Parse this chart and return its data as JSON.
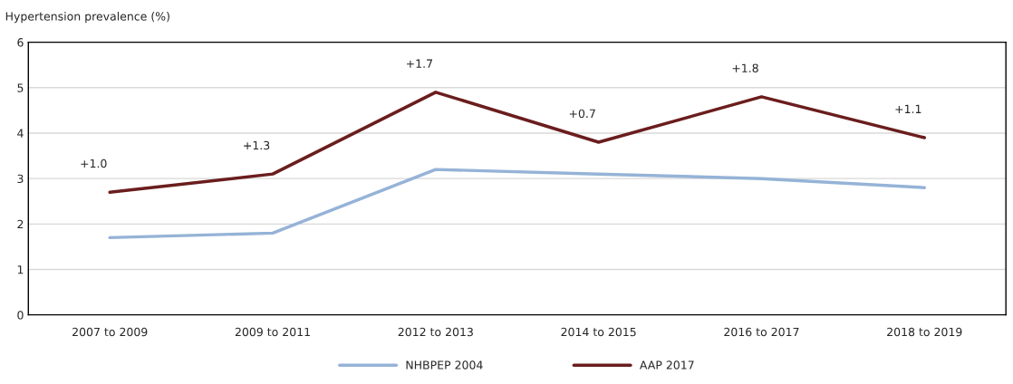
{
  "chart_data": {
    "type": "line",
    "ylabel": "Hypertension prevalence (%)",
    "categories": [
      "2007 to 2009",
      "2009 to 2011",
      "2012 to 2013",
      "2014 to 2015",
      "2016 to 2017",
      "2018 to 2019"
    ],
    "series": [
      {
        "name": "NHBPEP 2004",
        "color": "#95b3d7",
        "values": [
          1.7,
          1.8,
          3.2,
          3.1,
          3.0,
          2.8
        ]
      },
      {
        "name": "AAP 2017",
        "color": "#6b1d1d",
        "values": [
          2.7,
          3.1,
          4.9,
          3.8,
          4.8,
          3.9
        ]
      }
    ],
    "ylim": [
      0,
      6
    ],
    "yticks": [
      0,
      1,
      2,
      3,
      4,
      5,
      6
    ],
    "grid": "y",
    "legend": "bottom",
    "marker": "none",
    "line_style": "solid",
    "annotations": [
      "+1.0",
      "+1.3",
      "+1.7",
      "+0.7",
      "+1.8",
      "+1.1"
    ]
  }
}
